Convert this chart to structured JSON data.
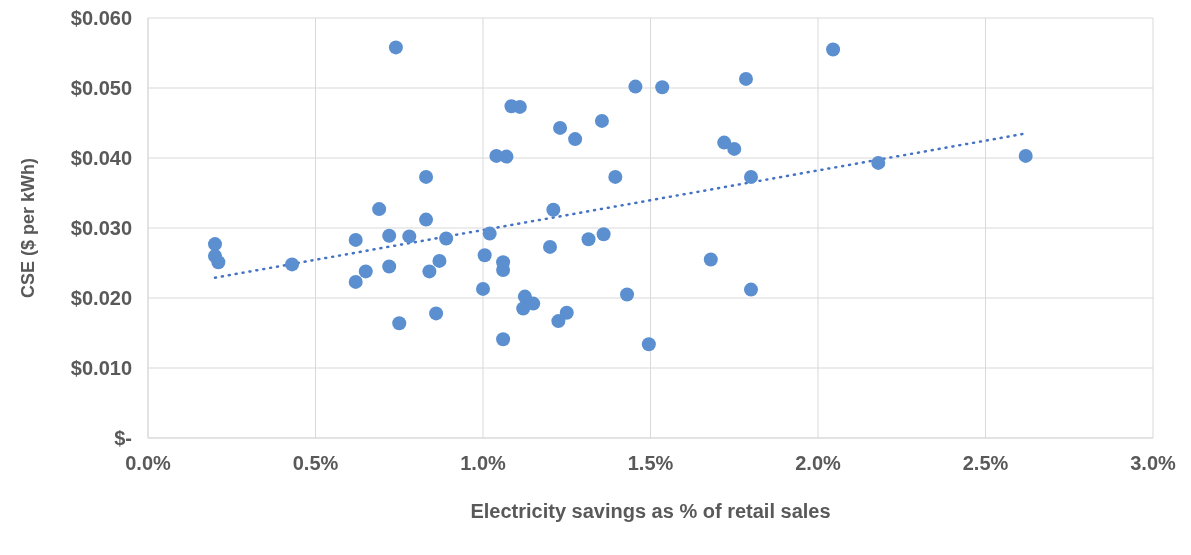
{
  "chart_data": {
    "type": "scatter",
    "xlabel": "Electricity savings as % of retail sales",
    "ylabel": "CSE ($ per kWh)",
    "xlim": [
      0,
      3
    ],
    "xticks": [
      {
        "value": 0,
        "label": "0.0%"
      },
      {
        "value": 0.5,
        "label": "0.5%"
      },
      {
        "value": 1,
        "label": "1.0%"
      },
      {
        "value": 1.5,
        "label": "1.5%"
      },
      {
        "value": 2,
        "label": "2.0%"
      },
      {
        "value": 2.5,
        "label": "2.5%"
      },
      {
        "value": 3,
        "label": "3.0%"
      }
    ],
    "ylim": [
      0,
      0.06
    ],
    "yticks": [
      {
        "value": 0,
        "label": "$-"
      },
      {
        "value": 0.01,
        "label": "$0.010"
      },
      {
        "value": 0.02,
        "label": "$0.020"
      },
      {
        "value": 0.03,
        "label": "$0.030"
      },
      {
        "value": 0.04,
        "label": "$0.040"
      },
      {
        "value": 0.05,
        "label": "$0.050"
      },
      {
        "value": 0.06,
        "label": "$0.060"
      }
    ],
    "grid": true,
    "series": [
      {
        "marker": "circle",
        "color": "#5b8fd0",
        "x": [
          0.2,
          0.2,
          0.21,
          0.43,
          0.74,
          0.83,
          0.69,
          0.83,
          0.62,
          0.72,
          0.78,
          0.89,
          0.87,
          0.84,
          0.72,
          0.65,
          0.62,
          0.86,
          0.75,
          1.02,
          1.005,
          1.06,
          1.06,
          1.0,
          1.06,
          1.04,
          1.07,
          1.085,
          1.11,
          1.23,
          1.275,
          1.355,
          1.395,
          1.21,
          1.2,
          1.315,
          1.36,
          1.125,
          1.15,
          1.12,
          1.25,
          1.225,
          1.43,
          1.495,
          1.455,
          1.535,
          1.785,
          1.72,
          1.75,
          1.8,
          1.68,
          1.8,
          2.045,
          2.18,
          2.62
        ],
        "values": [
          0.0277,
          0.026,
          0.0251,
          0.0248,
          0.0558,
          0.0373,
          0.0327,
          0.0312,
          0.0283,
          0.0289,
          0.0288,
          0.0285,
          0.0253,
          0.0238,
          0.0245,
          0.0238,
          0.0223,
          0.0178,
          0.0164,
          0.0292,
          0.0261,
          0.0251,
          0.024,
          0.0213,
          0.0141,
          0.0403,
          0.0402,
          0.0474,
          0.0473,
          0.0443,
          0.0427,
          0.0453,
          0.0373,
          0.0326,
          0.0273,
          0.0284,
          0.0291,
          0.0202,
          0.0192,
          0.0185,
          0.0179,
          0.0167,
          0.0205,
          0.0134,
          0.0502,
          0.0501,
          0.0513,
          0.0422,
          0.0413,
          0.0373,
          0.0255,
          0.0212,
          0.0555,
          0.0393,
          0.0403
        ]
      },
      {
        "type": "line",
        "marker": "none",
        "line_style": "dotted",
        "color": "#4472c4",
        "x": [
          0.2,
          2.62
        ],
        "values": [
          0.0229,
          0.0435
        ]
      }
    ]
  }
}
